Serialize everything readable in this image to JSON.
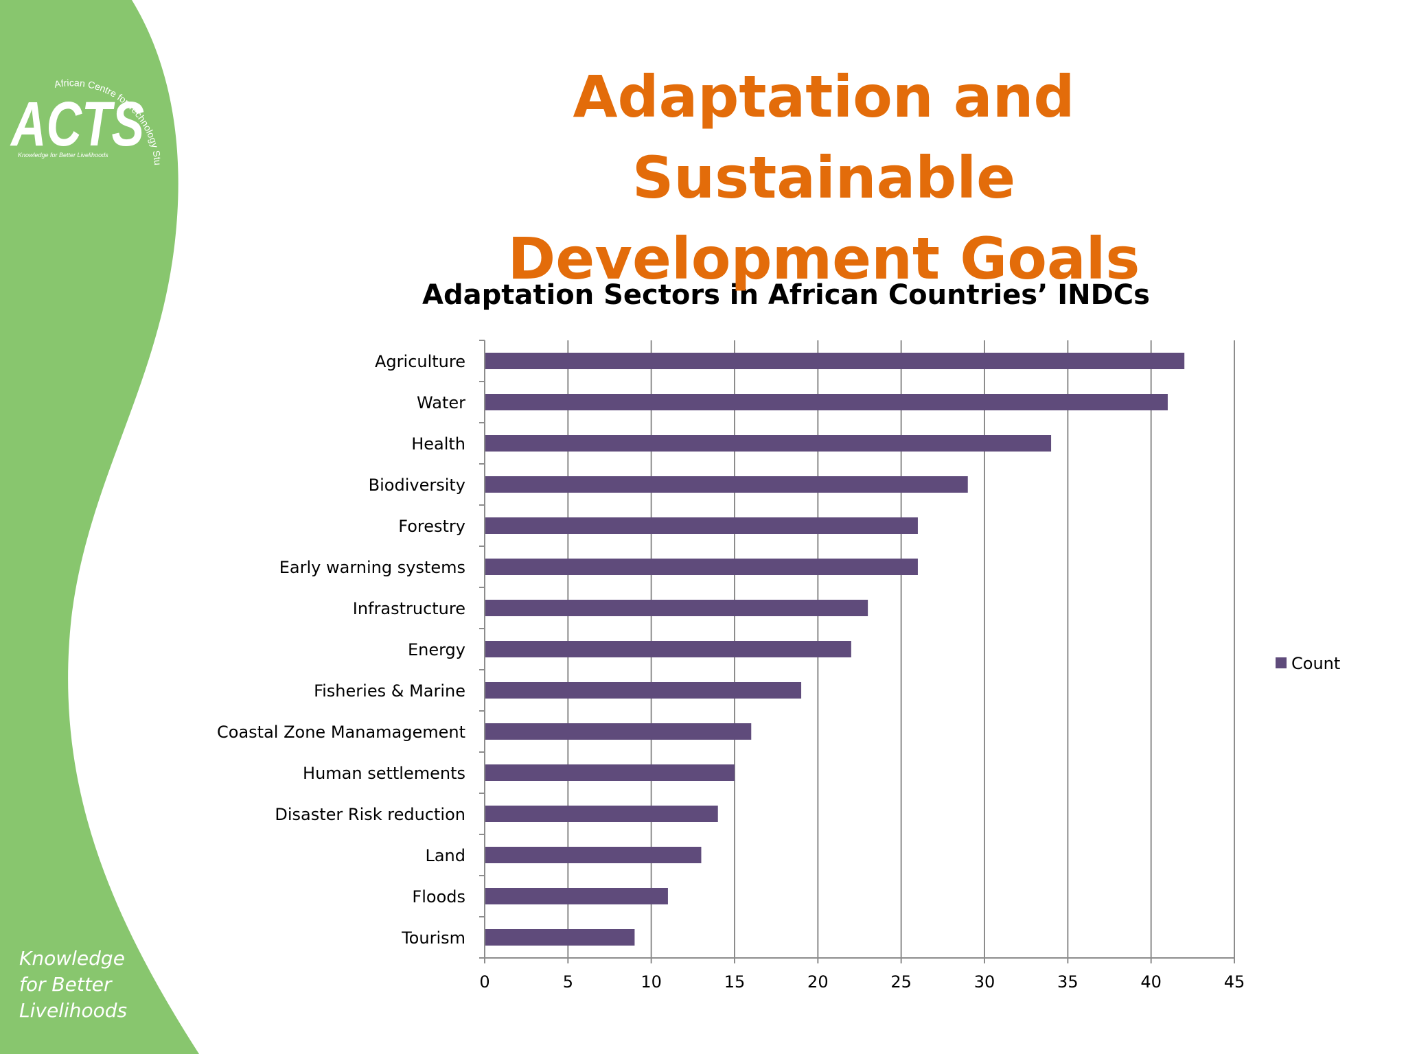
{
  "slide": {
    "title_line1": "Adaptation and Sustainable",
    "title_line2": "Development Goals",
    "colors": {
      "title": "#E36C0A",
      "sidebar_green": "#88C66E",
      "bar": "#5F4B7B"
    }
  },
  "logo": {
    "name": "ACTS",
    "arc_text": "African Centre for Technology Studies",
    "small_tagline": "Knowledge for Better Livelihoods"
  },
  "tagline": {
    "line1": "Knowledge",
    "line2": "for Better",
    "line3": "Livelihoods"
  },
  "chart_data": {
    "type": "bar",
    "orientation": "horizontal",
    "title": "Adaptation Sectors in African Countries’ INDCs",
    "categories": [
      "Agriculture",
      "Water",
      "Health",
      "Biodiversity",
      "Forestry",
      "Early warning systems",
      "Infrastructure",
      "Energy",
      "Fisheries & Marine",
      "Coastal Zone Manamagement",
      "Human settlements",
      "Disaster Risk reduction",
      "Land",
      "Floods",
      "Tourism"
    ],
    "series": [
      {
        "name": "Count",
        "values": [
          42,
          41,
          34,
          29,
          26,
          26,
          23,
          22,
          19,
          16,
          15,
          14,
          13,
          11,
          9
        ]
      }
    ],
    "xlim": [
      0,
      45
    ],
    "xticks": [
      0,
      5,
      10,
      15,
      20,
      25,
      30,
      35,
      40,
      45
    ],
    "grid": true,
    "legend": "right"
  }
}
